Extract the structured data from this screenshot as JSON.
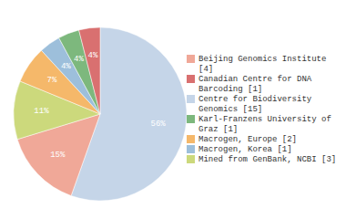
{
  "chart_data": {
    "type": "pie",
    "categories": [
      "Centre for Biodiversity\nGenomics [15]",
      "Beijing Genomics Institute [4]",
      "Mined from GenBank, NCBI [3]",
      "Macrogen, Europe [2]",
      "Macrogen, Korea [1]",
      "Karl-Franzens University of\nGraz [1]",
      "Canadian Centre for DNA\nBarcoding [1]"
    ],
    "values": [
      56,
      15,
      11,
      7,
      4,
      4,
      4
    ],
    "value_labels": [
      "56%",
      "15%",
      "11%",
      "7%",
      "4%",
      "4%",
      "4%"
    ],
    "colors": [
      "#c5d5e8",
      "#f0a898",
      "#ccd97c",
      "#f5b86a",
      "#9dbfdb",
      "#7db87d",
      "#d97070"
    ],
    "data_labels": true,
    "legend": "right"
  }
}
